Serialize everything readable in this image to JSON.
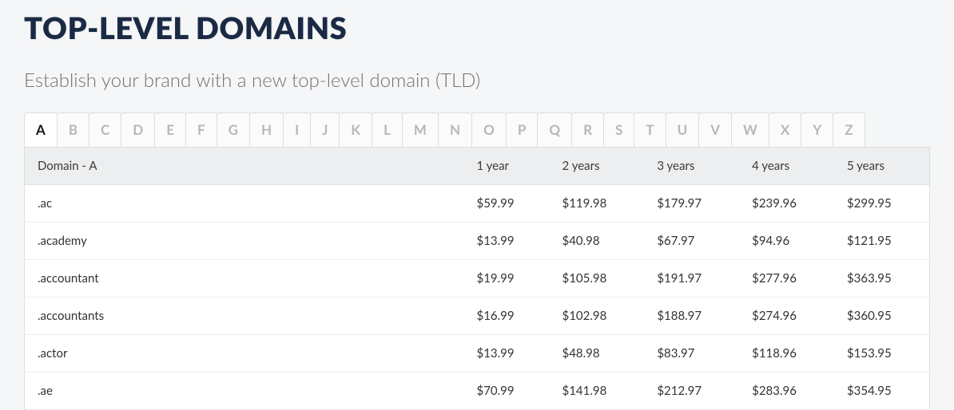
{
  "title": "TOP-LEVEL DOMAINS",
  "subtitle": "Establish your brand with a new top-level domain (TLD)",
  "alphabet": [
    "A",
    "B",
    "C",
    "D",
    "E",
    "F",
    "G",
    "H",
    "I",
    "J",
    "K",
    "L",
    "M",
    "N",
    "O",
    "P",
    "Q",
    "R",
    "S",
    "T",
    "U",
    "V",
    "W",
    "X",
    "Y",
    "Z"
  ],
  "activeLetter": "A",
  "table": {
    "domainHeader": "Domain - A",
    "yearHeaders": [
      "1 year",
      "2 years",
      "3 years",
      "4 years",
      "5 years"
    ],
    "rows": [
      {
        "domain": ".ac",
        "prices": [
          "$59.99",
          "$119.98",
          "$179.97",
          "$239.96",
          "$299.95"
        ]
      },
      {
        "domain": ".academy",
        "prices": [
          "$13.99",
          "$40.98",
          "$67.97",
          "$94.96",
          "$121.95"
        ]
      },
      {
        "domain": ".accountant",
        "prices": [
          "$19.99",
          "$105.98",
          "$191.97",
          "$277.96",
          "$363.95"
        ]
      },
      {
        "domain": ".accountants",
        "prices": [
          "$16.99",
          "$102.98",
          "$188.97",
          "$274.96",
          "$360.95"
        ]
      },
      {
        "domain": ".actor",
        "prices": [
          "$13.99",
          "$48.98",
          "$83.97",
          "$118.96",
          "$153.95"
        ]
      },
      {
        "domain": ".ae",
        "prices": [
          "$70.99",
          "$141.98",
          "$212.97",
          "$283.96",
          "$354.95"
        ]
      }
    ]
  }
}
